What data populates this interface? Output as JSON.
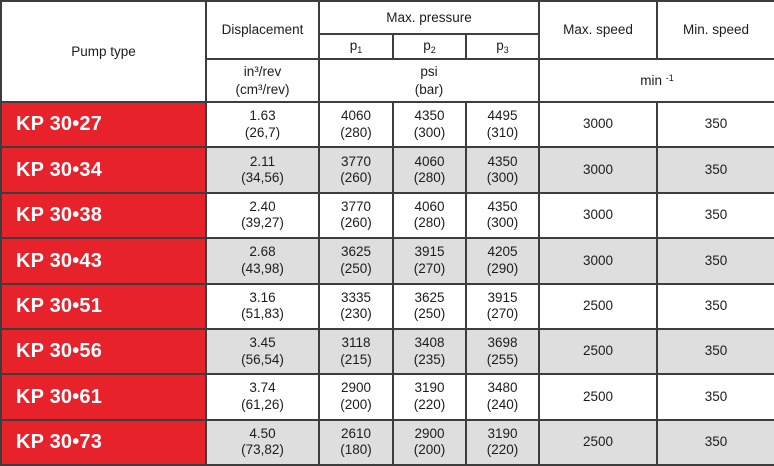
{
  "colors": {
    "accent_red": "#e8222a",
    "row_alt_gray": "#dedede",
    "border": "#3d3d3d"
  },
  "header": {
    "pump_type": "Pump type",
    "displacement": "Displacement",
    "max_pressure": "Max. pressure",
    "max_speed": "Max. speed",
    "min_speed": "Min. speed",
    "p1": {
      "base": "p",
      "sub": "1"
    },
    "p2": {
      "base": "p",
      "sub": "2"
    },
    "p3": {
      "base": "p",
      "sub": "3"
    },
    "disp_unit_line1": "in³/rev",
    "disp_unit_line2": "(cm³/rev)",
    "pressure_unit_line1": "psi",
    "pressure_unit_line2": "(bar)",
    "speed_unit_base": "min ",
    "speed_unit_sup": "-1"
  },
  "rows": [
    {
      "pump": "KP 30•27",
      "disp_in": "1.63",
      "disp_cm": "(26,7)",
      "p1_psi": "4060",
      "p1_bar": "(280)",
      "p2_psi": "4350",
      "p2_bar": "(300)",
      "p3_psi": "4495",
      "p3_bar": "(310)",
      "max_speed": "3000",
      "min_speed": "350"
    },
    {
      "pump": "KP 30•34",
      "disp_in": "2.11",
      "disp_cm": "(34,56)",
      "p1_psi": "3770",
      "p1_bar": "(260)",
      "p2_psi": "4060",
      "p2_bar": "(280)",
      "p3_psi": "4350",
      "p3_bar": "(300)",
      "max_speed": "3000",
      "min_speed": "350"
    },
    {
      "pump": "KP 30•38",
      "disp_in": "2.40",
      "disp_cm": "(39,27)",
      "p1_psi": "3770",
      "p1_bar": "(260)",
      "p2_psi": "4060",
      "p2_bar": "(280)",
      "p3_psi": "4350",
      "p3_bar": "(300)",
      "max_speed": "3000",
      "min_speed": "350"
    },
    {
      "pump": "KP 30•43",
      "disp_in": "2.68",
      "disp_cm": "(43,98)",
      "p1_psi": "3625",
      "p1_bar": "(250)",
      "p2_psi": "3915",
      "p2_bar": "(270)",
      "p3_psi": "4205",
      "p3_bar": "(290)",
      "max_speed": "3000",
      "min_speed": "350"
    },
    {
      "pump": "KP 30•51",
      "disp_in": "3.16",
      "disp_cm": "(51,83)",
      "p1_psi": "3335",
      "p1_bar": "(230)",
      "p2_psi": "3625",
      "p2_bar": "(250)",
      "p3_psi": "3915",
      "p3_bar": "(270)",
      "max_speed": "2500",
      "min_speed": "350"
    },
    {
      "pump": "KP 30•56",
      "disp_in": "3.45",
      "disp_cm": "(56,54)",
      "p1_psi": "3118",
      "p1_bar": "(215)",
      "p2_psi": "3408",
      "p2_bar": "(235)",
      "p3_psi": "3698",
      "p3_bar": "(255)",
      "max_speed": "2500",
      "min_speed": "350"
    },
    {
      "pump": "KP 30•61",
      "disp_in": "3.74",
      "disp_cm": "(61,26)",
      "p1_psi": "2900",
      "p1_bar": "(200)",
      "p2_psi": "3190",
      "p2_bar": "(220)",
      "p3_psi": "3480",
      "p3_bar": "(240)",
      "max_speed": "2500",
      "min_speed": "350"
    },
    {
      "pump": "KP 30•73",
      "disp_in": "4.50",
      "disp_cm": "(73,82)",
      "p1_psi": "2610",
      "p1_bar": "(180)",
      "p2_psi": "2900",
      "p2_bar": "(200)",
      "p3_psi": "3190",
      "p3_bar": "(220)",
      "max_speed": "2500",
      "min_speed": "350"
    }
  ]
}
